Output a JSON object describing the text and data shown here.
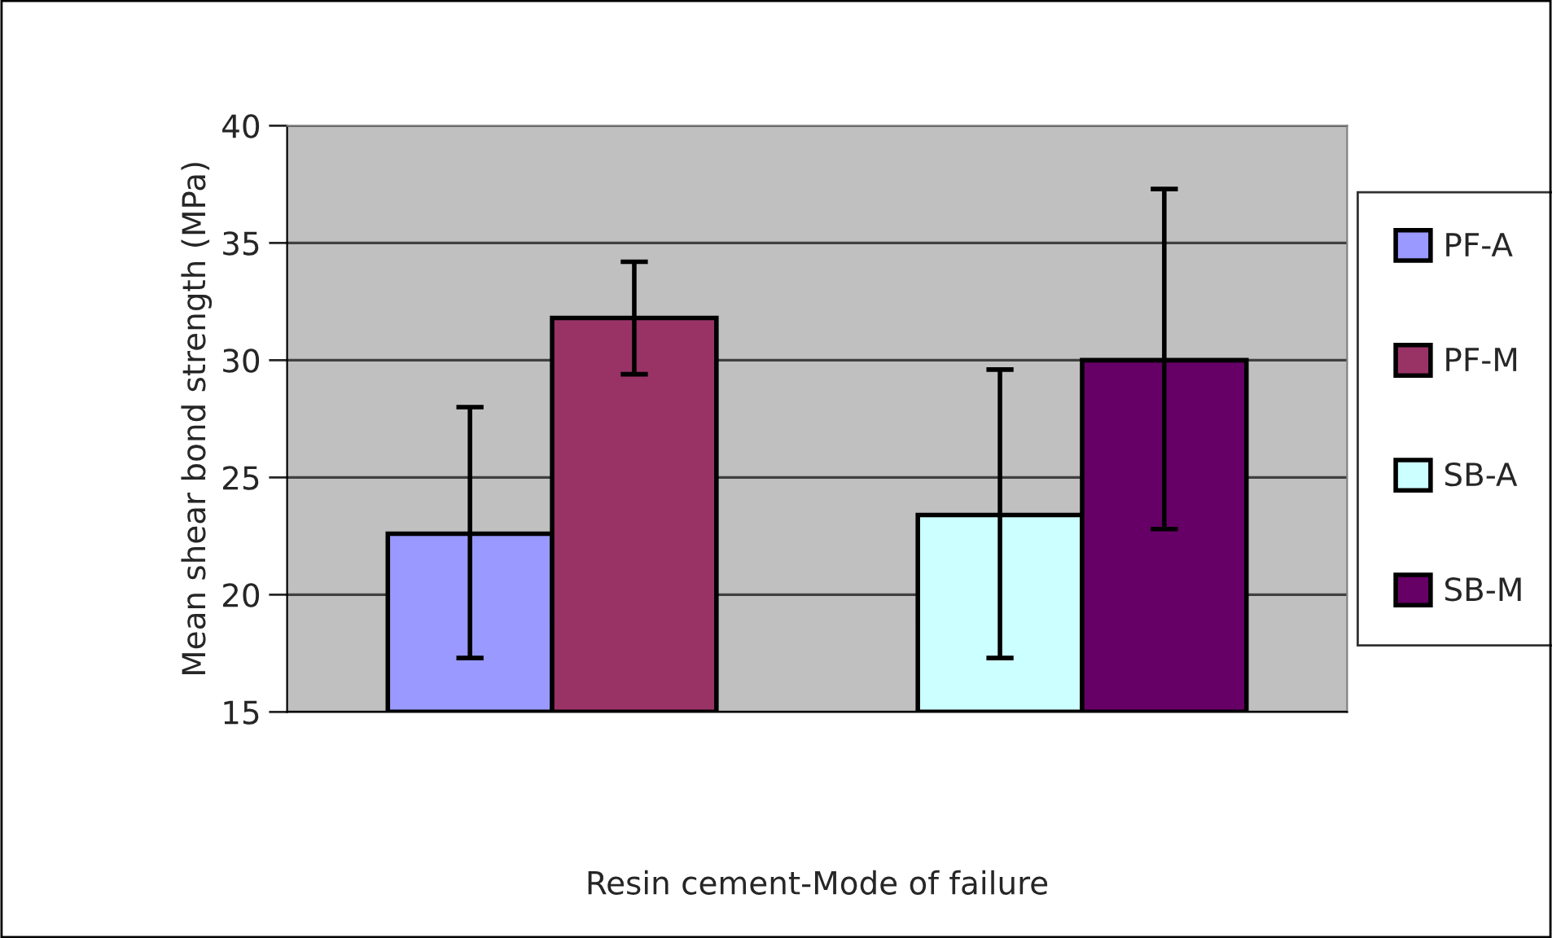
{
  "chart_data": {
    "type": "bar",
    "xlabel": "Resin cement-Mode of failure",
    "ylabel": "Mean shear bond strength (MPa)",
    "categories": [
      null,
      null
    ],
    "series": [
      {
        "name": "PF-A",
        "color": "#9999ff",
        "values": [
          22.6,
          null
        ],
        "errors": [
          [
            17.3,
            28.0
          ],
          null
        ]
      },
      {
        "name": "PF-M",
        "color": "#993366",
        "values": [
          31.8,
          null
        ],
        "errors": [
          [
            29.4,
            34.2
          ],
          null
        ]
      },
      {
        "name": "SB-A",
        "color": "#ccffff",
        "values": [
          null,
          23.4
        ],
        "errors": [
          null,
          [
            17.3,
            29.6
          ]
        ]
      },
      {
        "name": "SB-M",
        "color": "#660066",
        "values": [
          null,
          30.0
        ],
        "errors": [
          null,
          [
            22.8,
            37.3
          ]
        ]
      }
    ],
    "ylim": [
      15,
      40
    ],
    "yticks": [
      15,
      20,
      25,
      30,
      35,
      40
    ],
    "grid": "y",
    "legend": "right",
    "tick_labels": "y"
  }
}
